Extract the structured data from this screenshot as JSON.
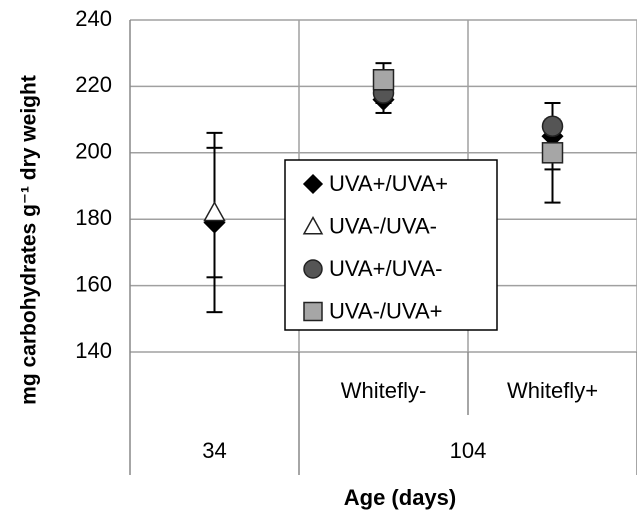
{
  "chart_data": {
    "type": "scatter",
    "xlabel": "Age (days)",
    "ylabel": "mg carbohydrates g⁻¹ dry weight",
    "categories": [
      null,
      "Whitefly-",
      "Whitefly+"
    ],
    "groups": [
      {
        "label": "34",
        "span": 1
      },
      {
        "label": "104",
        "span": 2
      }
    ],
    "ylim": [
      140,
      240
    ],
    "yticks": [
      140,
      160,
      180,
      200,
      220,
      240
    ],
    "grid": true,
    "legend": "center",
    "series": [
      {
        "name": "UVA+/UVA+",
        "marker": "diamond",
        "color": "#000000",
        "values": [
          179,
          216,
          205
        ],
        "errors": [
          27,
          4,
          10
        ]
      },
      {
        "name": "UVA-/UVA-",
        "marker": "triangle",
        "color": "#ffffff",
        "values": [
          182,
          null,
          null
        ],
        "errors": [
          19.5,
          null,
          null
        ]
      },
      {
        "name": "UVA+/UVA-",
        "marker": "circle",
        "color": "#555555",
        "values": [
          null,
          218,
          208
        ],
        "errors": [
          null,
          3,
          2
        ]
      },
      {
        "name": "UVA-/UVA+",
        "marker": "square",
        "color": "#a6a6a6",
        "values": [
          null,
          222,
          200
        ],
        "errors": [
          null,
          5,
          15
        ]
      }
    ]
  }
}
